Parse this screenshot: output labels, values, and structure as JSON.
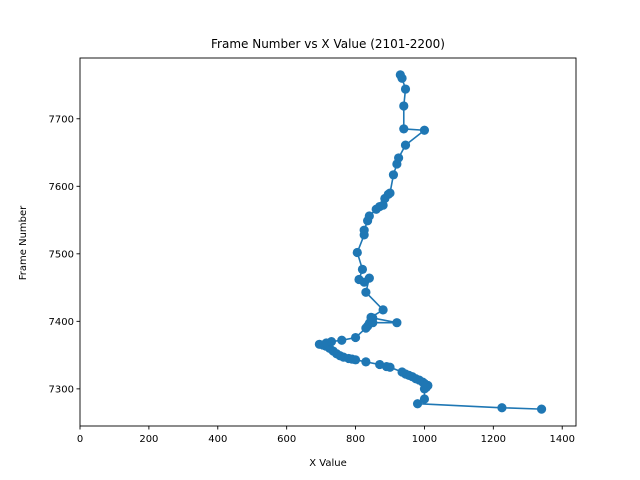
{
  "chart_data": {
    "type": "line",
    "title": "Frame Number vs X Value (2101-2200)",
    "xlabel": "X Value",
    "ylabel": "Frame Number",
    "xlim": [
      0,
      1440
    ],
    "ylim": [
      7245,
      7790
    ],
    "xticks": [
      0,
      200,
      400,
      600,
      800,
      1000,
      1200,
      1400
    ],
    "yticks": [
      7300,
      7400,
      7500,
      7600,
      7700
    ],
    "grid": false,
    "marker": "circle",
    "color": "#1f77b4",
    "series": [
      {
        "x": [
          1340,
          1225,
          980,
          1000,
          1000,
          1005,
          1010,
          1000,
          995,
          985,
          975,
          965,
          955,
          945,
          935,
          900,
          890,
          870,
          830,
          800,
          790,
          780,
          765,
          755,
          745,
          735,
          725,
          715,
          705,
          695,
          715,
          730,
          760,
          800,
          830,
          835,
          840,
          845,
          850,
          920,
          850,
          845,
          880,
          830,
          840,
          825,
          810,
          820,
          805,
          825,
          825,
          835,
          840,
          860,
          870,
          880,
          885,
          895,
          900,
          910,
          920,
          925,
          945,
          1000,
          940,
          940,
          945,
          935,
          930
        ],
        "y": [
          7270,
          7272,
          7278,
          7285,
          7300,
          7302,
          7305,
          7308,
          7310,
          7313,
          7315,
          7318,
          7320,
          7322,
          7325,
          7332,
          7333,
          7336,
          7340,
          7343,
          7344,
          7345,
          7347,
          7349,
          7352,
          7356,
          7360,
          7363,
          7365,
          7366,
          7368,
          7370,
          7372,
          7376,
          7390,
          7393,
          7397,
          7402,
          7405,
          7398,
          7398,
          7406,
          7417,
          7443,
          7464,
          7458,
          7462,
          7477,
          7502,
          7528,
          7535,
          7549,
          7556,
          7566,
          7570,
          7572,
          7582,
          7588,
          7590,
          7617,
          7633,
          7642,
          7661,
          7683,
          7685,
          7719,
          7744,
          7760,
          7765
        ]
      }
    ]
  }
}
